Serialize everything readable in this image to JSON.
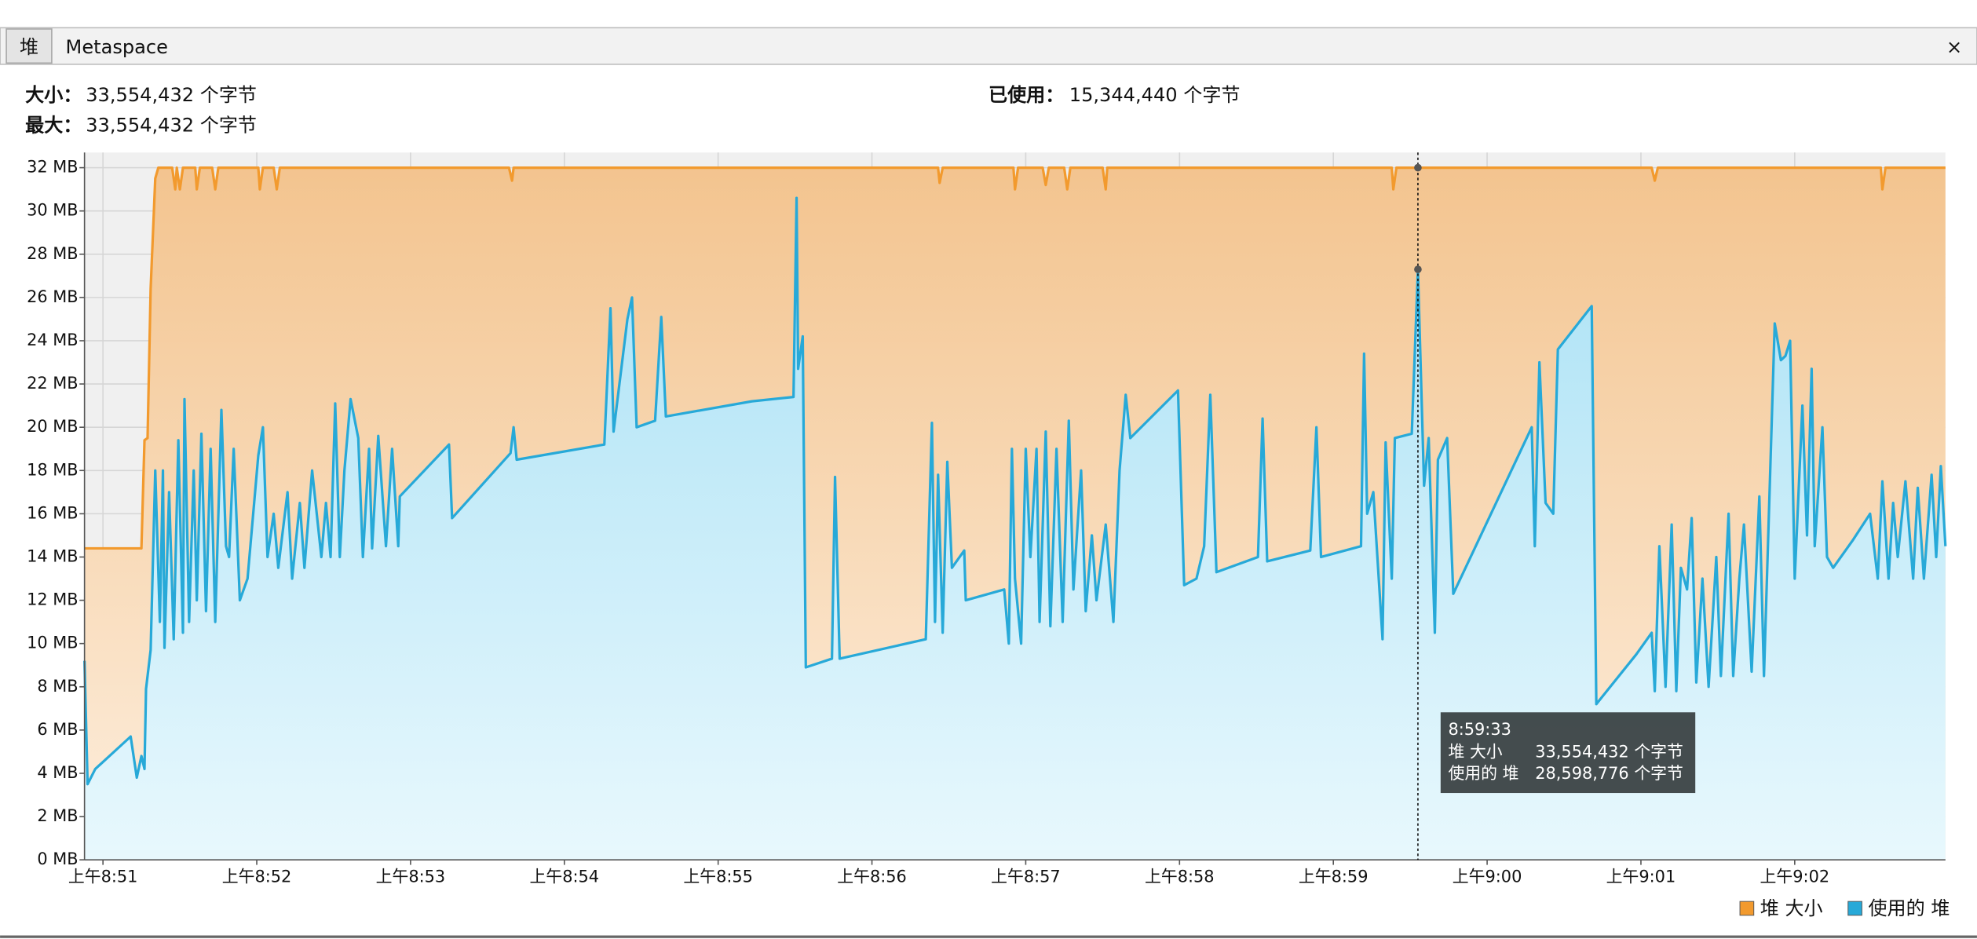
{
  "tabs": [
    "堆",
    "Metaspace"
  ],
  "stats": {
    "size": {
      "label": "大小：",
      "value": "33,554,432 个字节"
    },
    "max": {
      "label": "最大：",
      "value": "33,554,432 个字节"
    },
    "used": {
      "label": "已使用：",
      "value": "15,344,440 个字节"
    }
  },
  "chart_data": {
    "type": "area",
    "xlim": [
      530.88,
      542.98
    ],
    "ylim": [
      0,
      32.7
    ],
    "grid": true,
    "legend": "bottom-right",
    "xticks": [
      {
        "value": 531,
        "label": "上午8:51"
      },
      {
        "value": 532,
        "label": "上午8:52"
      },
      {
        "value": 533,
        "label": "上午8:53"
      },
      {
        "value": 534,
        "label": "上午8:54"
      },
      {
        "value": 535,
        "label": "上午8:55"
      },
      {
        "value": 536,
        "label": "上午8:56"
      },
      {
        "value": 537,
        "label": "上午8:57"
      },
      {
        "value": 538,
        "label": "上午8:58"
      },
      {
        "value": 539,
        "label": "上午8:59"
      },
      {
        "value": 540,
        "label": "上午9:00"
      },
      {
        "value": 541,
        "label": "上午9:01"
      },
      {
        "value": 542,
        "label": "上午9:02"
      }
    ],
    "yticks": [
      {
        "value": 0,
        "label": "0 MB"
      },
      {
        "value": 2,
        "label": "2 MB"
      },
      {
        "value": 4,
        "label": "4 MB"
      },
      {
        "value": 6,
        "label": "6 MB"
      },
      {
        "value": 8,
        "label": "8 MB"
      },
      {
        "value": 10,
        "label": "10 MB"
      },
      {
        "value": 12,
        "label": "12 MB"
      },
      {
        "value": 14,
        "label": "14 MB"
      },
      {
        "value": 16,
        "label": "16 MB"
      },
      {
        "value": 18,
        "label": "18 MB"
      },
      {
        "value": 20,
        "label": "20 MB"
      },
      {
        "value": 22,
        "label": "22 MB"
      },
      {
        "value": 24,
        "label": "24 MB"
      },
      {
        "value": 26,
        "label": "26 MB"
      },
      {
        "value": 28,
        "label": "28 MB"
      },
      {
        "value": 30,
        "label": "30 MB"
      },
      {
        "value": 32,
        "label": "32 MB"
      }
    ],
    "series": [
      {
        "name": "堆 大小",
        "color": "#f29a2e",
        "x": [
          530.88,
          531.25,
          531.27,
          531.29,
          531.31,
          531.34,
          531.36,
          531.45,
          531.47,
          531.48,
          531.5,
          531.52,
          531.6,
          531.61,
          531.63,
          531.71,
          531.73,
          531.75,
          532.01,
          532.02,
          532.04,
          532.11,
          532.13,
          532.15,
          533.64,
          533.66,
          533.67,
          536.43,
          536.44,
          536.46,
          536.92,
          536.93,
          536.95,
          537.11,
          537.13,
          537.15,
          537.25,
          537.27,
          537.29,
          537.5,
          537.52,
          537.53,
          539.38,
          539.39,
          539.41,
          541.07,
          541.09,
          541.11,
          542.56,
          542.57,
          542.59,
          542.98
        ],
        "values": [
          14.4,
          14.4,
          19.4,
          19.5,
          26.4,
          31.5,
          32,
          32,
          31,
          32,
          31,
          32,
          32,
          31,
          32,
          32,
          31,
          32,
          32,
          31,
          32,
          32,
          31,
          32,
          32,
          31.4,
          32,
          32,
          31.3,
          32,
          32,
          31,
          32,
          32,
          31.2,
          32,
          32,
          31,
          32,
          32,
          31,
          32,
          32,
          31,
          32,
          32,
          31.4,
          32,
          32,
          31,
          32,
          32
        ]
      },
      {
        "name": "使用的 堆",
        "color": "#27a9d8",
        "x": [
          530.88,
          530.9,
          530.95,
          531.18,
          531.22,
          531.25,
          531.27,
          531.28,
          531.31,
          531.34,
          531.37,
          531.39,
          531.4,
          531.43,
          531.46,
          531.49,
          531.52,
          531.53,
          531.56,
          531.59,
          531.61,
          531.64,
          531.67,
          531.7,
          531.73,
          531.77,
          531.8,
          531.82,
          531.85,
          531.89,
          531.94,
          532.01,
          532.04,
          532.07,
          532.11,
          532.14,
          532.2,
          532.23,
          532.28,
          532.31,
          532.36,
          532.42,
          532.45,
          532.48,
          532.51,
          532.54,
          532.57,
          532.61,
          532.66,
          532.69,
          532.73,
          532.75,
          532.79,
          532.84,
          532.88,
          532.92,
          532.93,
          533.25,
          533.27,
          533.65,
          533.67,
          533.69,
          534.26,
          534.3,
          534.32,
          534.41,
          534.44,
          534.47,
          534.59,
          534.63,
          534.66,
          535.22,
          535.49,
          535.51,
          535.52,
          535.55,
          535.57,
          535.74,
          535.76,
          535.79,
          536.35,
          536.39,
          536.41,
          536.43,
          536.46,
          536.49,
          536.52,
          536.6,
          536.61,
          536.86,
          536.89,
          536.91,
          536.93,
          536.97,
          537.0,
          537.03,
          537.07,
          537.09,
          537.13,
          537.16,
          537.2,
          537.24,
          537.28,
          537.31,
          537.36,
          537.39,
          537.43,
          537.46,
          537.52,
          537.57,
          537.61,
          537.65,
          537.68,
          537.99,
          538.03,
          538.11,
          538.16,
          538.2,
          538.24,
          538.51,
          538.54,
          538.57,
          538.85,
          538.89,
          538.92,
          539.18,
          539.2,
          539.22,
          539.26,
          539.32,
          539.34,
          539.38,
          539.4,
          539.51,
          539.55,
          539.59,
          539.62,
          539.66,
          539.68,
          539.74,
          539.78,
          540.29,
          540.31,
          540.34,
          540.38,
          540.43,
          540.46,
          540.68,
          540.71,
          540.97,
          541.07,
          541.09,
          541.12,
          541.16,
          541.2,
          541.23,
          541.26,
          541.3,
          541.33,
          541.36,
          541.4,
          541.44,
          541.49,
          541.52,
          541.57,
          541.6,
          541.64,
          541.67,
          541.72,
          541.77,
          541.8,
          541.87,
          541.91,
          541.94,
          541.97,
          542.0,
          542.05,
          542.08,
          542.11,
          542.13,
          542.18,
          542.21,
          542.25,
          542.38,
          542.49,
          542.54,
          542.57,
          542.61,
          542.64,
          542.67,
          542.72,
          542.77,
          542.8,
          542.84,
          542.89,
          542.92,
          542.95,
          542.98
        ],
        "values": [
          9.2,
          3.5,
          4.2,
          5.7,
          3.8,
          4.8,
          4.2,
          7.9,
          9.7,
          18,
          11,
          18,
          9.8,
          17,
          10.2,
          19.4,
          10.5,
          21.3,
          11,
          18,
          12,
          19.7,
          11.5,
          19,
          11,
          20.8,
          14.5,
          14,
          19,
          12,
          13,
          18.7,
          20,
          14,
          16,
          13.5,
          17,
          13,
          16.5,
          13.5,
          18,
          14,
          16.5,
          14,
          21.1,
          14,
          18,
          21.3,
          19.5,
          14,
          19,
          14.4,
          19.6,
          14.5,
          19,
          14.5,
          16.8,
          19.2,
          15.8,
          18.8,
          20,
          18.5,
          19.2,
          25.5,
          19.8,
          25,
          26,
          20,
          20.3,
          25.1,
          20.5,
          21.2,
          21.4,
          30.6,
          22.7,
          24.2,
          8.9,
          9.3,
          17.7,
          9.3,
          10.2,
          20.2,
          11,
          17.8,
          10.5,
          18.4,
          13.5,
          14.3,
          12,
          12.5,
          10,
          19,
          13,
          10,
          19,
          14,
          19,
          11,
          19.8,
          10.8,
          19,
          11,
          20.3,
          12.5,
          18,
          11.5,
          15,
          12,
          15.5,
          11,
          18,
          21.5,
          19.5,
          21.7,
          12.7,
          13,
          14.5,
          21.5,
          13.3,
          14,
          20.4,
          13.8,
          14.3,
          20,
          14,
          14.5,
          23.4,
          16,
          17,
          10.2,
          19.3,
          13,
          19.5,
          19.7,
          27.3,
          17.3,
          19.5,
          10.5,
          18.5,
          19.5,
          12.3,
          20,
          14.5,
          23,
          16.5,
          16,
          23.6,
          25.6,
          7.2,
          9.5,
          10.5,
          7.8,
          14.5,
          8,
          15.5,
          7.8,
          13.5,
          12.5,
          15.8,
          8.2,
          13,
          8,
          14,
          8.5,
          16,
          8.5,
          13,
          15.5,
          8.7,
          16.8,
          8.5,
          24.8,
          23.1,
          23.3,
          24,
          13,
          21,
          15,
          22.7,
          14.5,
          20,
          14,
          13.5,
          14.8,
          16,
          13,
          17.5,
          13,
          16.5,
          14,
          17.5,
          13,
          17.2,
          13,
          17.8,
          14,
          18.2,
          14.5
        ]
      }
    ],
    "tooltip": {
      "x": 539.55,
      "time": "8:59:33",
      "rows": [
        {
          "name": "堆 大小",
          "value": "33,554,432 个字节"
        },
        {
          "name": "使用的 堆",
          "value": "28,598,776 个字节"
        }
      ]
    }
  }
}
